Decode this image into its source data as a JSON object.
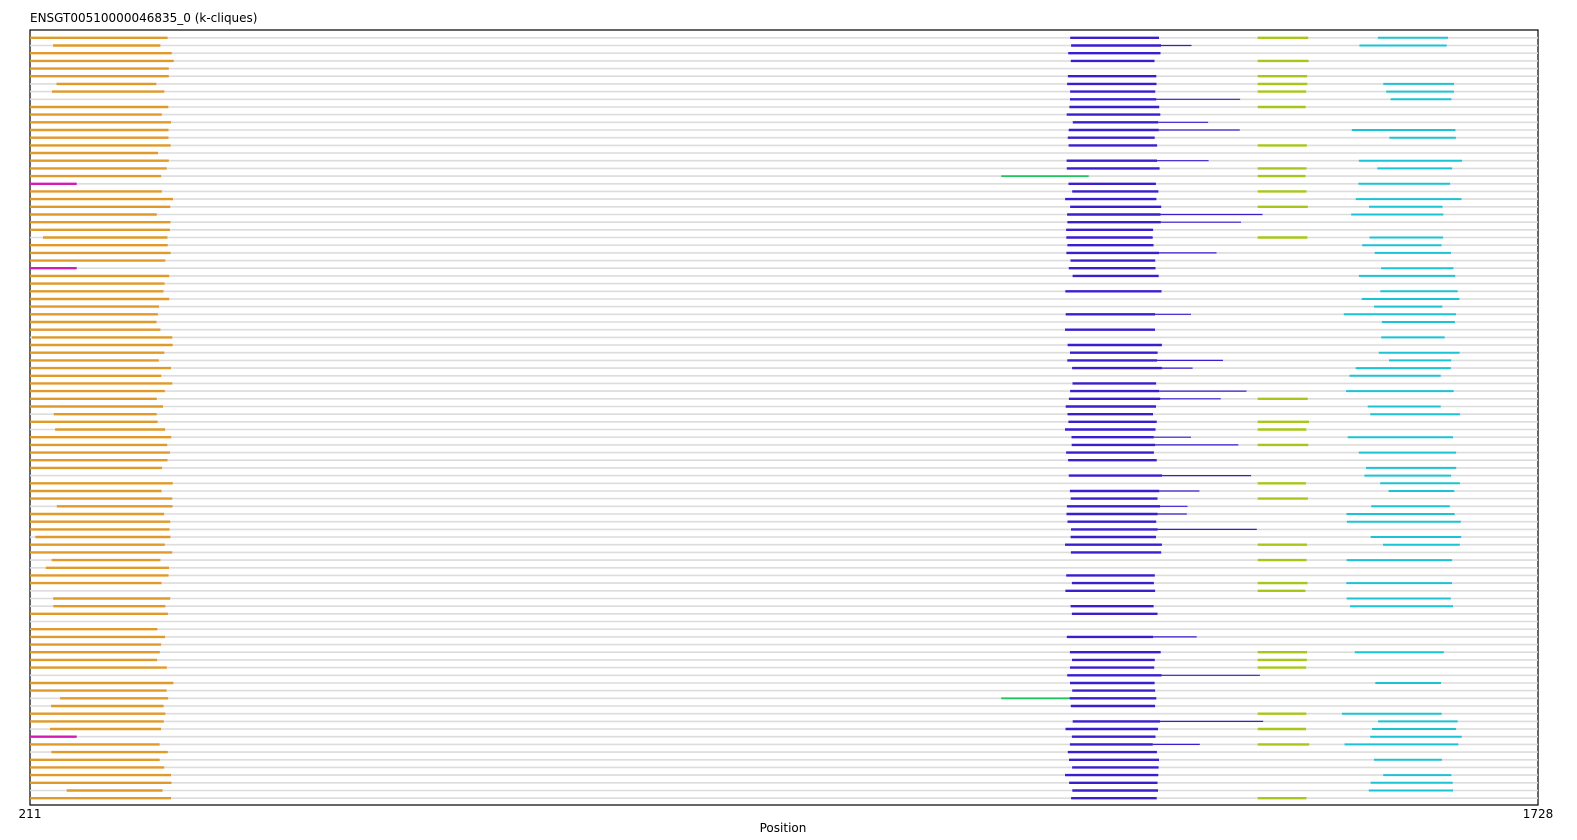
{
  "chart_data": {
    "type": "alignment-track",
    "title": "ENSGT00510000046835_0 (k-cliques)",
    "xlabel": "Position",
    "ylabel": "",
    "xlim": [
      211,
      1728
    ],
    "x_ticks": [
      "211",
      "1728"
    ],
    "grid": false,
    "row_count": 100,
    "background_color": "#dcdcdc",
    "clique_colors": {
      "orange": "#e09a2a",
      "magenta": "#d41bb4",
      "blue": "#3a1fcf",
      "green": "#22c55e",
      "lime": "#a6c71a",
      "cyan": "#1bc3d4"
    },
    "segments": [
      {
        "clique": "orange",
        "start": 211,
        "end": 356,
        "rows": "most"
      },
      {
        "clique": "magenta",
        "start": 211,
        "end": 258,
        "rows": [
          19,
          30,
          91
        ]
      },
      {
        "clique": "blue",
        "start": 1252,
        "end": 1348,
        "rows": "many"
      },
      {
        "clique": "blue",
        "start": 1348,
        "end": 1455,
        "rows": "some"
      },
      {
        "clique": "green",
        "start": 1188,
        "end": 1276,
        "rows": [
          18,
          86
        ]
      },
      {
        "clique": "green",
        "start": 1226,
        "end": 1250,
        "rows": [
          29
        ]
      },
      {
        "clique": "lime",
        "start": 1446,
        "end": 1496,
        "rows": "some"
      },
      {
        "clique": "cyan",
        "start": 1530,
        "end": 1652,
        "rows": "some"
      },
      {
        "clique": "cyan",
        "start": 1652,
        "end": 1728,
        "rows": [
          20
        ]
      }
    ]
  }
}
